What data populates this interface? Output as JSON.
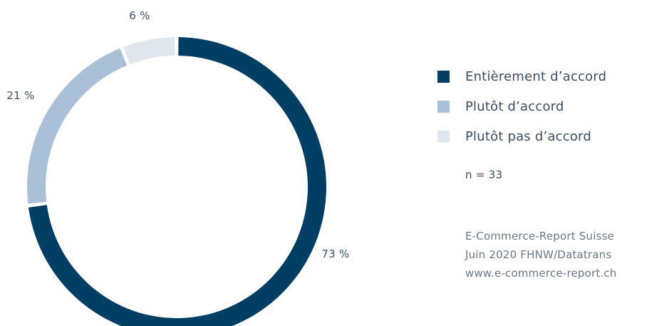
{
  "chart_data": {
    "type": "pie",
    "donut": true,
    "title": "",
    "slices": [
      {
        "name": "Entièrement d’accord",
        "value": 73,
        "label": "73 %",
        "color": "#003f63"
      },
      {
        "name": "Plutôt d’accord",
        "value": 21,
        "label": "21 %",
        "color": "#a9c0d6"
      },
      {
        "name": "Plutôt pas d’accord",
        "value": 6,
        "label": "6 %",
        "color": "#e0e6ee"
      }
    ],
    "legend_position": "right"
  },
  "note": {
    "sample_size": "n = 33"
  },
  "source": {
    "lines": [
      "E-Commerce-Report Suisse",
      "Juin 2020 FHNW/Datatrans",
      "www.e-commerce-report.ch"
    ]
  }
}
